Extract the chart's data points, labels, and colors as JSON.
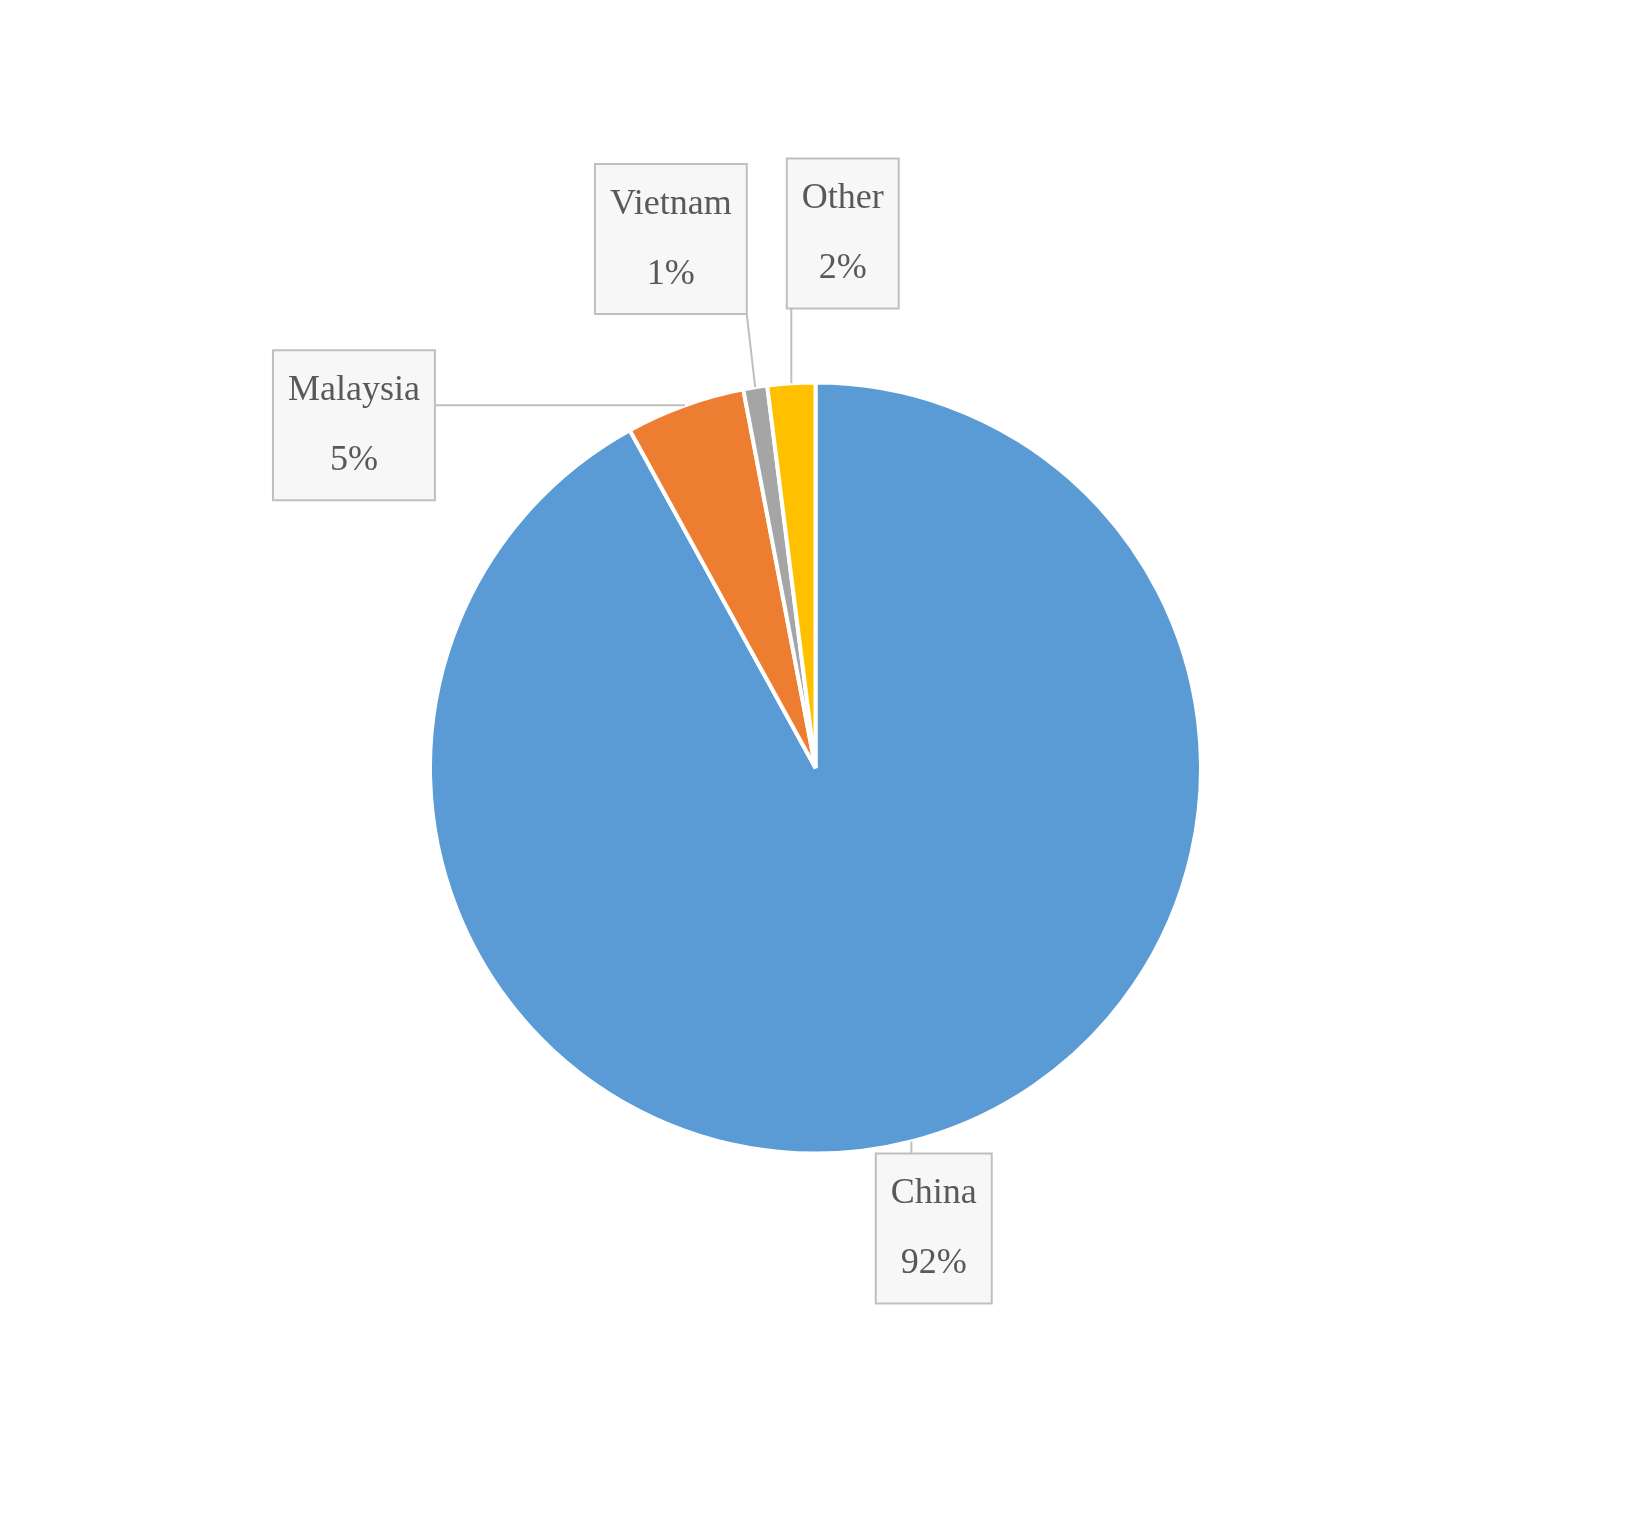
{
  "chart_data": {
    "type": "pie",
    "categories": [
      "China",
      "Malaysia",
      "Vietnam",
      "Other"
    ],
    "values": [
      92,
      5,
      1,
      2
    ],
    "colors": [
      "#5b9bd5",
      "#ed7d31",
      "#a5a5a5",
      "#ffc000"
    ],
    "value_labels": [
      "92%",
      "5%",
      "1%",
      "2%"
    ],
    "legend": false
  }
}
